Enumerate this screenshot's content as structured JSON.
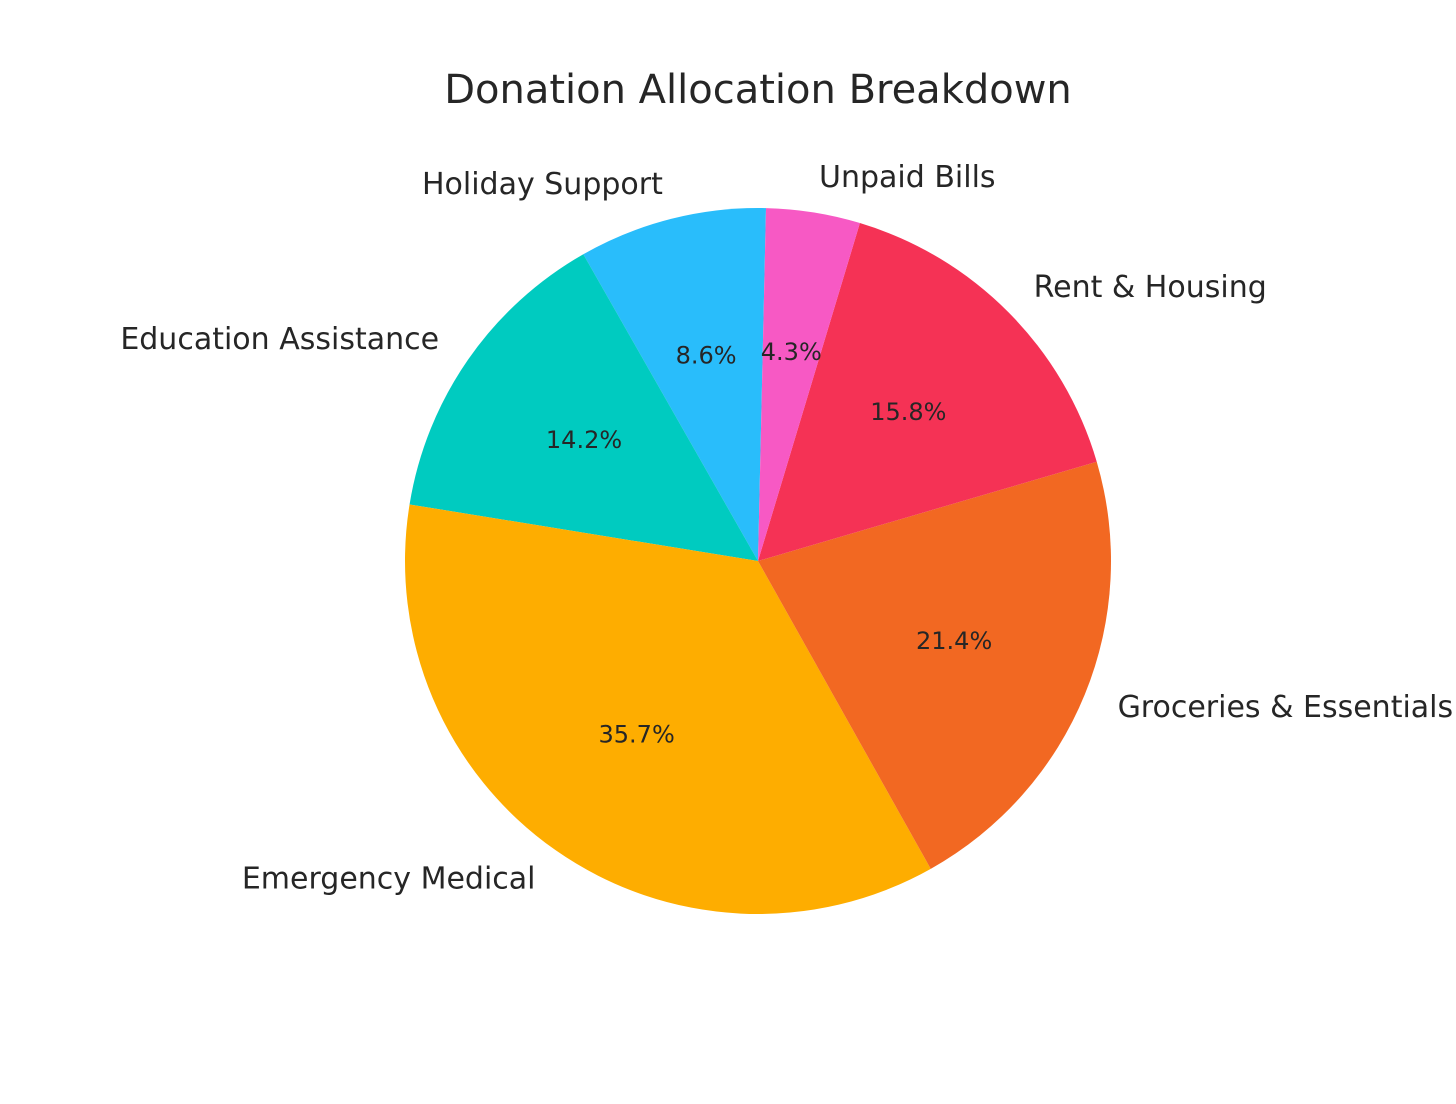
{
  "chart_data": {
    "type": "pie",
    "title": "Donation Allocation Breakdown",
    "slices": [
      {
        "label": "Holiday Support",
        "value": 8.6,
        "pct_label": "8.6%",
        "color": "#29BDFB"
      },
      {
        "label": "Education Assistance",
        "value": 14.2,
        "pct_label": "14.2%",
        "color": "#00CBC0"
      },
      {
        "label": "Emergency Medical",
        "value": 35.7,
        "pct_label": "35.7%",
        "color": "#FEAD00"
      },
      {
        "label": "Groceries & Essentials",
        "value": 21.4,
        "pct_label": "21.4%",
        "color": "#F26822"
      },
      {
        "label": "Rent & Housing",
        "value": 15.8,
        "pct_label": "15.8%",
        "color": "#F53255"
      },
      {
        "label": "Unpaid Bills",
        "value": 4.3,
        "pct_label": "4.3%",
        "color": "#F759C4"
      }
    ],
    "start_angle_deg": 88.7,
    "direction": "counterclockwise"
  }
}
